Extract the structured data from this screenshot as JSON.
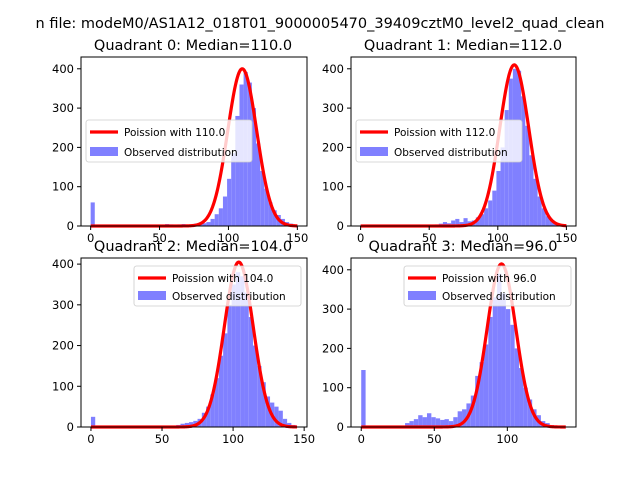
{
  "figure": {
    "suptitle": "n file: modeM0/AS1A12_018T01_9000005470_39409cztM0_level2_quad_clean"
  },
  "colors": {
    "poisson_line": "#ff0000",
    "histogram": "#8080ff",
    "axes": "#000000",
    "background": "#ffffff"
  },
  "chart_data": [
    {
      "type": "histogram",
      "title": "Quadrant 0: Median=110.0",
      "median": 110.0,
      "xlim": [
        -7,
        157
      ],
      "ylim": [
        0,
        430
      ],
      "xticks": [
        0,
        50,
        100,
        150
      ],
      "yticks": [
        0,
        100,
        200,
        300,
        400
      ],
      "legend_position": "center-left",
      "series": [
        {
          "name": "Poission with 110.0",
          "kind": "line",
          "mean": 110.0,
          "peak": 400,
          "x_range": [
            0,
            150
          ]
        },
        {
          "name": "Observed distribution",
          "kind": "bars",
          "bin_width": 3,
          "bins": [
            [
              0,
              60
            ],
            [
              54,
              5
            ],
            [
              57,
              4
            ],
            [
              60,
              3
            ],
            [
              63,
              4
            ],
            [
              66,
              5
            ],
            [
              69,
              3
            ],
            [
              72,
              3
            ],
            [
              75,
              6
            ],
            [
              78,
              5
            ],
            [
              81,
              7
            ],
            [
              84,
              10
            ],
            [
              87,
              18
            ],
            [
              90,
              30
            ],
            [
              93,
              45
            ],
            [
              96,
              75
            ],
            [
              99,
              120
            ],
            [
              102,
              185
            ],
            [
              105,
              280
            ],
            [
              108,
              360
            ],
            [
              111,
              392
            ],
            [
              114,
              365
            ],
            [
              117,
              300
            ],
            [
              120,
              210
            ],
            [
              123,
              140
            ],
            [
              126,
              95
            ],
            [
              129,
              60
            ],
            [
              132,
              40
            ],
            [
              135,
              28
            ],
            [
              138,
              18
            ],
            [
              141,
              10
            ],
            [
              144,
              6
            ],
            [
              147,
              3
            ]
          ]
        }
      ]
    },
    {
      "type": "histogram",
      "title": "Quadrant 1: Median=112.0",
      "median": 112.0,
      "xlim": [
        -7,
        157
      ],
      "ylim": [
        0,
        430
      ],
      "xticks": [
        0,
        50,
        100,
        150
      ],
      "yticks": [
        0,
        100,
        200,
        300,
        400
      ],
      "legend_position": "center-left",
      "series": [
        {
          "name": "Poission with 112.0",
          "kind": "line",
          "mean": 112.0,
          "peak": 410,
          "x_range": [
            0,
            150
          ]
        },
        {
          "name": "Observed distribution",
          "kind": "bars",
          "bin_width": 3,
          "bins": [
            [
              0,
              3
            ],
            [
              54,
              4
            ],
            [
              57,
              6
            ],
            [
              60,
              10
            ],
            [
              63,
              7
            ],
            [
              66,
              14
            ],
            [
              69,
              18
            ],
            [
              72,
              10
            ],
            [
              75,
              20
            ],
            [
              78,
              12
            ],
            [
              81,
              14
            ],
            [
              84,
              22
            ],
            [
              87,
              30
            ],
            [
              90,
              45
            ],
            [
              93,
              65
            ],
            [
              96,
              90
            ],
            [
              99,
              140
            ],
            [
              102,
              200
            ],
            [
              105,
              295
            ],
            [
              108,
              375
            ],
            [
              111,
              400
            ],
            [
              114,
              395
            ],
            [
              117,
              330
            ],
            [
              120,
              255
            ],
            [
              123,
              180
            ],
            [
              126,
              120
            ],
            [
              129,
              75
            ],
            [
              132,
              45
            ],
            [
              135,
              25
            ],
            [
              138,
              15
            ],
            [
              141,
              8
            ],
            [
              144,
              5
            ],
            [
              147,
              3
            ]
          ]
        }
      ]
    },
    {
      "type": "histogram",
      "title": "Quadrant 2: Median=104.0",
      "median": 104.0,
      "xlim": [
        -7,
        152
      ],
      "ylim": [
        0,
        415
      ],
      "xticks": [
        0,
        50,
        100,
        150
      ],
      "yticks": [
        0,
        100,
        200,
        300,
        400
      ],
      "legend_position": "upper-right",
      "series": [
        {
          "name": "Poission with 104.0",
          "kind": "line",
          "mean": 104.0,
          "peak": 405,
          "x_range": [
            0,
            145
          ]
        },
        {
          "name": "Observed distribution",
          "kind": "bars",
          "bin_width": 3,
          "bins": [
            [
              0,
              25
            ],
            [
              50,
              3
            ],
            [
              60,
              5
            ],
            [
              63,
              8
            ],
            [
              66,
              10
            ],
            [
              69,
              12
            ],
            [
              72,
              15
            ],
            [
              75,
              20
            ],
            [
              78,
              35
            ],
            [
              81,
              50
            ],
            [
              84,
              80
            ],
            [
              87,
              120
            ],
            [
              90,
              175
            ],
            [
              93,
              230
            ],
            [
              96,
              300
            ],
            [
              99,
              350
            ],
            [
              102,
              380
            ],
            [
              105,
              370
            ],
            [
              108,
              330
            ],
            [
              111,
              270
            ],
            [
              114,
              200
            ],
            [
              117,
              150
            ],
            [
              120,
              110
            ],
            [
              123,
              75
            ],
            [
              126,
              60
            ],
            [
              129,
              50
            ],
            [
              132,
              40
            ],
            [
              135,
              20
            ],
            [
              138,
              10
            ],
            [
              141,
              5
            ]
          ]
        }
      ]
    },
    {
      "type": "histogram",
      "title": "Quadrant 3: Median=96.0",
      "median": 96.0,
      "xlim": [
        -7,
        147
      ],
      "ylim": [
        0,
        430
      ],
      "xticks": [
        0,
        50,
        100
      ],
      "yticks": [
        0,
        100,
        200,
        300,
        400
      ],
      "legend_position": "upper-right",
      "series": [
        {
          "name": "Poission with 96.0",
          "kind": "line",
          "mean": 96.0,
          "peak": 415,
          "x_range": [
            0,
            140
          ]
        },
        {
          "name": "Observed distribution",
          "kind": "bars",
          "bin_width": 3,
          "bins": [
            [
              0,
              145
            ],
            [
              30,
              10
            ],
            [
              33,
              15
            ],
            [
              36,
              20
            ],
            [
              39,
              30
            ],
            [
              42,
              25
            ],
            [
              45,
              35
            ],
            [
              48,
              25
            ],
            [
              51,
              22
            ],
            [
              54,
              18
            ],
            [
              57,
              20
            ],
            [
              60,
              15
            ],
            [
              63,
              25
            ],
            [
              66,
              40
            ],
            [
              69,
              45
            ],
            [
              72,
              60
            ],
            [
              75,
              80
            ],
            [
              78,
              130
            ],
            [
              81,
              165
            ],
            [
              84,
              210
            ],
            [
              87,
              280
            ],
            [
              90,
              330
            ],
            [
              93,
              390
            ],
            [
              96,
              340
            ],
            [
              99,
              300
            ],
            [
              102,
              260
            ],
            [
              105,
              200
            ],
            [
              108,
              150
            ],
            [
              111,
              100
            ],
            [
              114,
              70
            ],
            [
              117,
              45
            ],
            [
              120,
              30
            ],
            [
              123,
              15
            ],
            [
              126,
              10
            ],
            [
              129,
              5
            ]
          ]
        }
      ]
    }
  ]
}
